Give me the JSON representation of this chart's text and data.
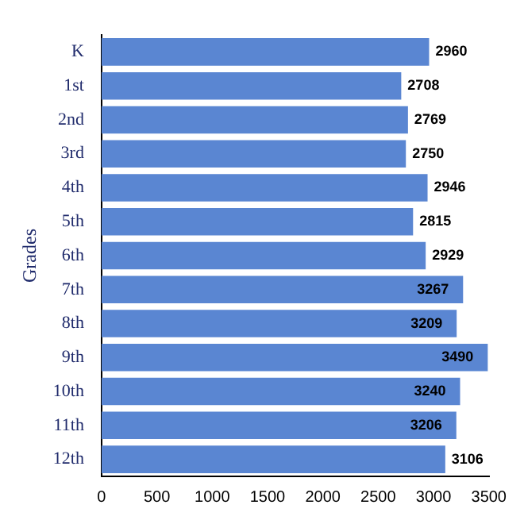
{
  "chart_data": {
    "type": "bar",
    "orientation": "horizontal",
    "ylabel": "Grades",
    "categories": [
      "K",
      "1st",
      "2nd",
      "3rd",
      "4th",
      "5th",
      "6th",
      "7th",
      "8th",
      "9th",
      "10th",
      "11th",
      "12th"
    ],
    "values": [
      2960,
      2708,
      2769,
      2750,
      2946,
      2815,
      2929,
      3267,
      3209,
      3490,
      3240,
      3206,
      3106
    ],
    "color": "#5a86d2",
    "xlim": [
      0,
      3500
    ],
    "xticks": [
      0,
      500,
      1000,
      1500,
      2000,
      2500,
      3000,
      3500
    ],
    "data_labels": true,
    "grid": false,
    "legend": false
  }
}
